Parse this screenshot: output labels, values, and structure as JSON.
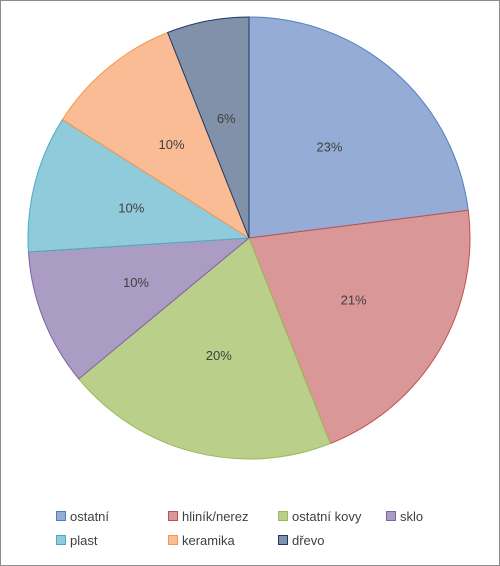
{
  "chart_data": {
    "type": "pie",
    "title": "",
    "categories": [
      "ostatní",
      "hliník/nerez",
      "ostatní kovy",
      "sklo",
      "plast",
      "keramika",
      "dřevo"
    ],
    "values": [
      23,
      21,
      20,
      10,
      10,
      10,
      6
    ],
    "data_labels": [
      "23%",
      "21%",
      "20%",
      "10%",
      "10%",
      "10%",
      "6%"
    ],
    "colors": [
      "#95acd6",
      "#d99897",
      "#b9cf8a",
      "#ab9cc4",
      "#8fcbdb",
      "#f9bc95",
      "#8191a9"
    ],
    "edge_colors": [
      "#4f81bd",
      "#c0504d",
      "#9bbb59",
      "#8064a2",
      "#4bacc6",
      "#f79646",
      "#1f3864"
    ],
    "legend_position": "bottom"
  },
  "legend": {
    "items": [
      {
        "label": "ostatní",
        "color": "#95acd6"
      },
      {
        "label": "hliník/nerez",
        "color": "#d99897"
      },
      {
        "label": "ostatní kovy",
        "color": "#b9cf8a"
      },
      {
        "label": "sklo",
        "color": "#ab9cc4"
      },
      {
        "label": "plast",
        "color": "#8fcbdb"
      },
      {
        "label": "keramika",
        "color": "#f9bc95"
      },
      {
        "label": "dřevo",
        "color": "#8191a9"
      }
    ]
  }
}
